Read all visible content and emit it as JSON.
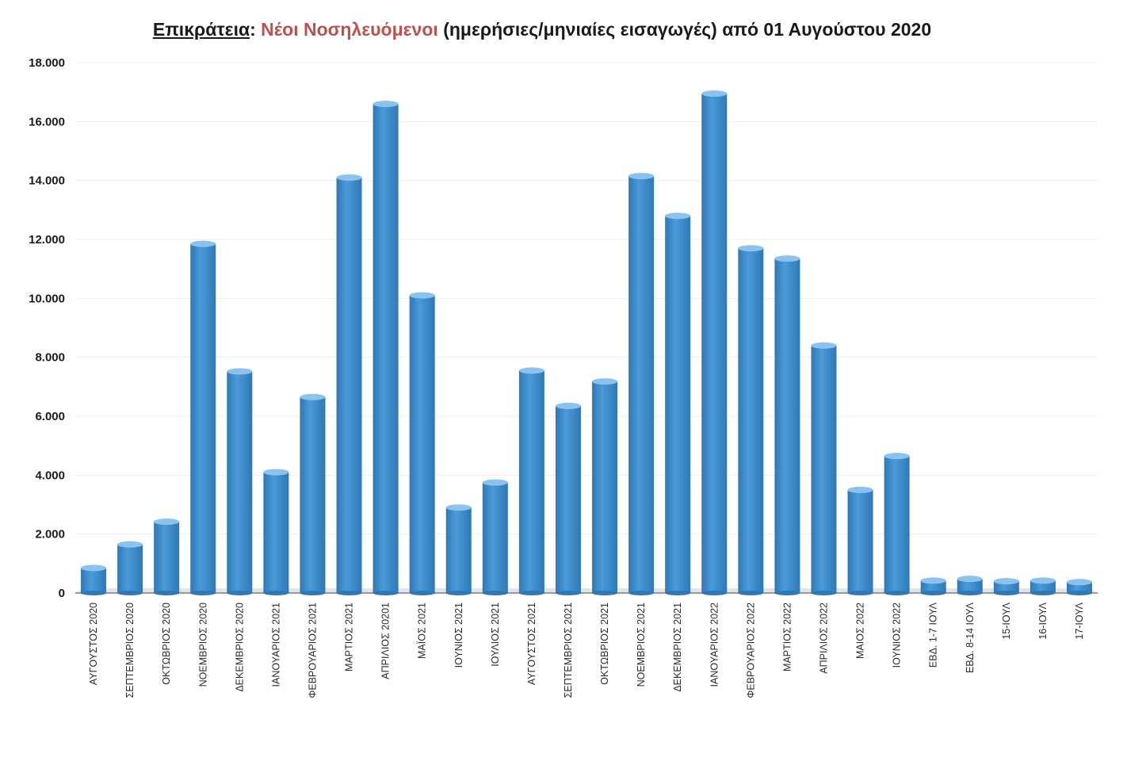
{
  "title": {
    "region": "Επικράτεια",
    "separator": ":",
    "accent": "Νέοι Νοσηλευόμενοι",
    "rest": "(ημερήσιες/μηνιαίες εισαγωγές) από  01 Αυγούστου 2020"
  },
  "colors": {
    "bar": "#4a9bd8",
    "bar_dark": "#2f78b6",
    "bar_light": "#8cc3ee",
    "title_accent": "#c0504d"
  },
  "chart_data": {
    "type": "bar",
    "title": "Επικράτεια: Νέοι Νοσηλευόμενοι (ημερήσιες/μηνιαίες εισαγωγές) από  01 Αυγούστου 2020",
    "xlabel": "",
    "ylabel": "",
    "ylim": [
      0,
      18000
    ],
    "yticks": [
      "0",
      "2.000",
      "4.000",
      "6.000",
      "8.000",
      "10.000",
      "12.000",
      "14.000",
      "16.000",
      "18.000"
    ],
    "ytick_values": [
      0,
      2000,
      4000,
      6000,
      8000,
      10000,
      12000,
      14000,
      16000,
      18000
    ],
    "grid": true,
    "legend": "none",
    "categories": [
      "ΑΥΓΟΥΣΤΟΣ 2020",
      "ΣΕΠΤΕΜΒΡΙΟΣ 2020",
      "ΟΚΤΩΒΡΙΟΣ 2020",
      "ΝΟΕΜΒΡΙΟΣ 2020",
      "ΔΕΚΕΜΒΡΙΟΣ 2020",
      "ΙΑΝΟΥΑΡΙΟΣ 2021",
      "ΦΕΒΡΟΥΑΡΙΟΣ 2021",
      "ΜΑΡΤΙΟΣ 2021",
      "ΑΠΡΙΛΙΟΣ 20201",
      "ΜΑΪΟΣ 2021",
      "ΙΟΥΝΙΟΣ 2021",
      "ΙΟΥΛΙΟΣ 2021",
      "ΑΥΓΟΥΣΤΟΣ 2021",
      "ΣΕΠΤΕΜΒΡΙΟΣ 2021",
      "ΟΚΤΩΒΡΙΟΣ 2021",
      "ΝΟΕΜΒΡΙΟΣ 2021",
      "ΔΕΚΕΜΒΡΙΟΣ 2021",
      "ΙΑΝΟΥΑΡΙΟΣ 2022",
      "ΦΕΒΡΟΥΑΡΙΟΣ 2022",
      "ΜΑΡΤΙΟΣ 2022",
      "ΑΠΡΙΛΙΟΣ 2022",
      "ΜΑΙΟΣ 2022",
      "ΙΟΥΝΙΟΣ 2022",
      "ΕΒΔ. 1-7 ΙΟΥΛ",
      "ΕΒΔ. 8-14 ΙΟΥΛ",
      "15-ΙΟΥΛ",
      "16-ΙΟΥΛ",
      "17-ΙΟΥΛ"
    ],
    "values": [
      850,
      1650,
      2420,
      11850,
      7520,
      4100,
      6650,
      14100,
      16600,
      10100,
      2900,
      3750,
      7550,
      6350,
      7180,
      14150,
      12800,
      16950,
      11700,
      11350,
      8400,
      3500,
      4650,
      420,
      480,
      400,
      420,
      370
    ]
  }
}
